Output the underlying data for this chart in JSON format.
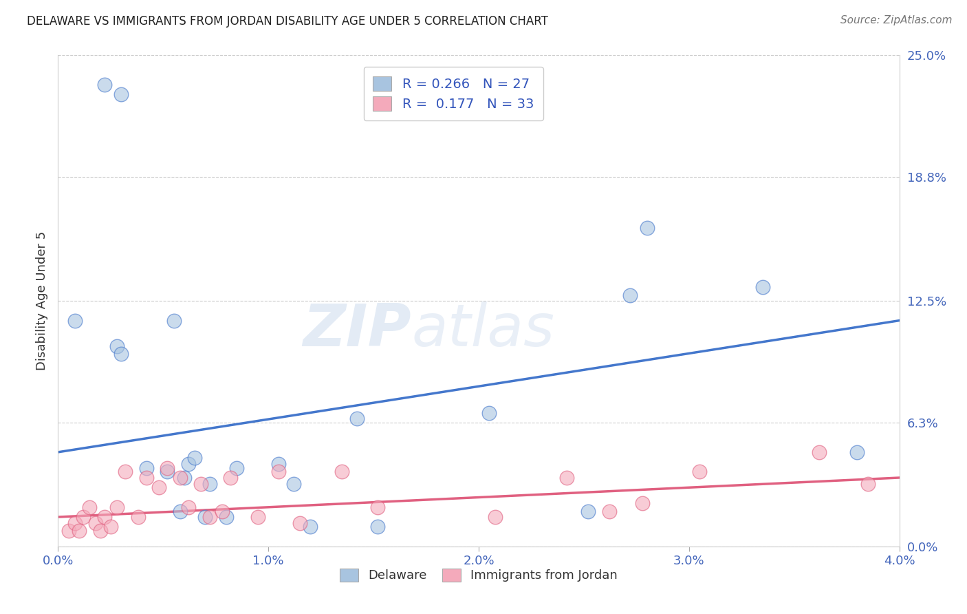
{
  "title": "DELAWARE VS IMMIGRANTS FROM JORDAN DISABILITY AGE UNDER 5 CORRELATION CHART",
  "source": "Source: ZipAtlas.com",
  "ylabel": "Disability Age Under 5",
  "xlabel_vals": [
    0.0,
    1.0,
    2.0,
    3.0,
    4.0
  ],
  "ylabel_vals": [
    0.0,
    6.3,
    12.5,
    18.8,
    25.0
  ],
  "xlim": [
    0.0,
    4.0
  ],
  "ylim": [
    0.0,
    25.0
  ],
  "blue_color": "#A8C4E0",
  "pink_color": "#F4AABB",
  "line_blue": "#4477CC",
  "line_pink": "#E06080",
  "watermark_zip": "ZIP",
  "watermark_atlas": "atlas",
  "delaware_x": [
    0.22,
    0.3,
    0.28,
    0.3,
    0.55,
    0.62,
    0.42,
    0.52,
    0.58,
    0.65,
    0.72,
    0.8,
    0.85,
    1.05,
    1.12,
    1.2,
    1.42,
    1.52,
    2.05,
    2.52,
    2.72,
    2.8,
    3.35,
    3.8,
    0.08,
    0.6,
    0.7
  ],
  "delaware_y": [
    23.5,
    23.0,
    10.2,
    9.8,
    11.5,
    4.2,
    4.0,
    3.8,
    1.8,
    4.5,
    3.2,
    1.5,
    4.0,
    4.2,
    3.2,
    1.0,
    6.5,
    1.0,
    6.8,
    1.8,
    12.8,
    16.2,
    13.2,
    4.8,
    11.5,
    3.5,
    1.5
  ],
  "jordan_x": [
    0.05,
    0.08,
    0.1,
    0.12,
    0.15,
    0.18,
    0.2,
    0.22,
    0.25,
    0.28,
    0.32,
    0.38,
    0.42,
    0.48,
    0.52,
    0.58,
    0.62,
    0.68,
    0.72,
    0.78,
    0.82,
    0.95,
    1.05,
    1.15,
    1.35,
    1.52,
    2.08,
    2.42,
    2.62,
    2.78,
    3.05,
    3.62,
    3.85
  ],
  "jordan_y": [
    0.8,
    1.2,
    0.8,
    1.5,
    2.0,
    1.2,
    0.8,
    1.5,
    1.0,
    2.0,
    3.8,
    1.5,
    3.5,
    3.0,
    4.0,
    3.5,
    2.0,
    3.2,
    1.5,
    1.8,
    3.5,
    1.5,
    3.8,
    1.2,
    3.8,
    2.0,
    1.5,
    3.5,
    1.8,
    2.2,
    3.8,
    4.8,
    3.2
  ],
  "blue_trend_x": [
    0.0,
    4.0
  ],
  "blue_trend_y": [
    4.8,
    11.5
  ],
  "pink_trend_x": [
    0.0,
    4.0
  ],
  "pink_trend_y": [
    1.5,
    3.5
  ]
}
